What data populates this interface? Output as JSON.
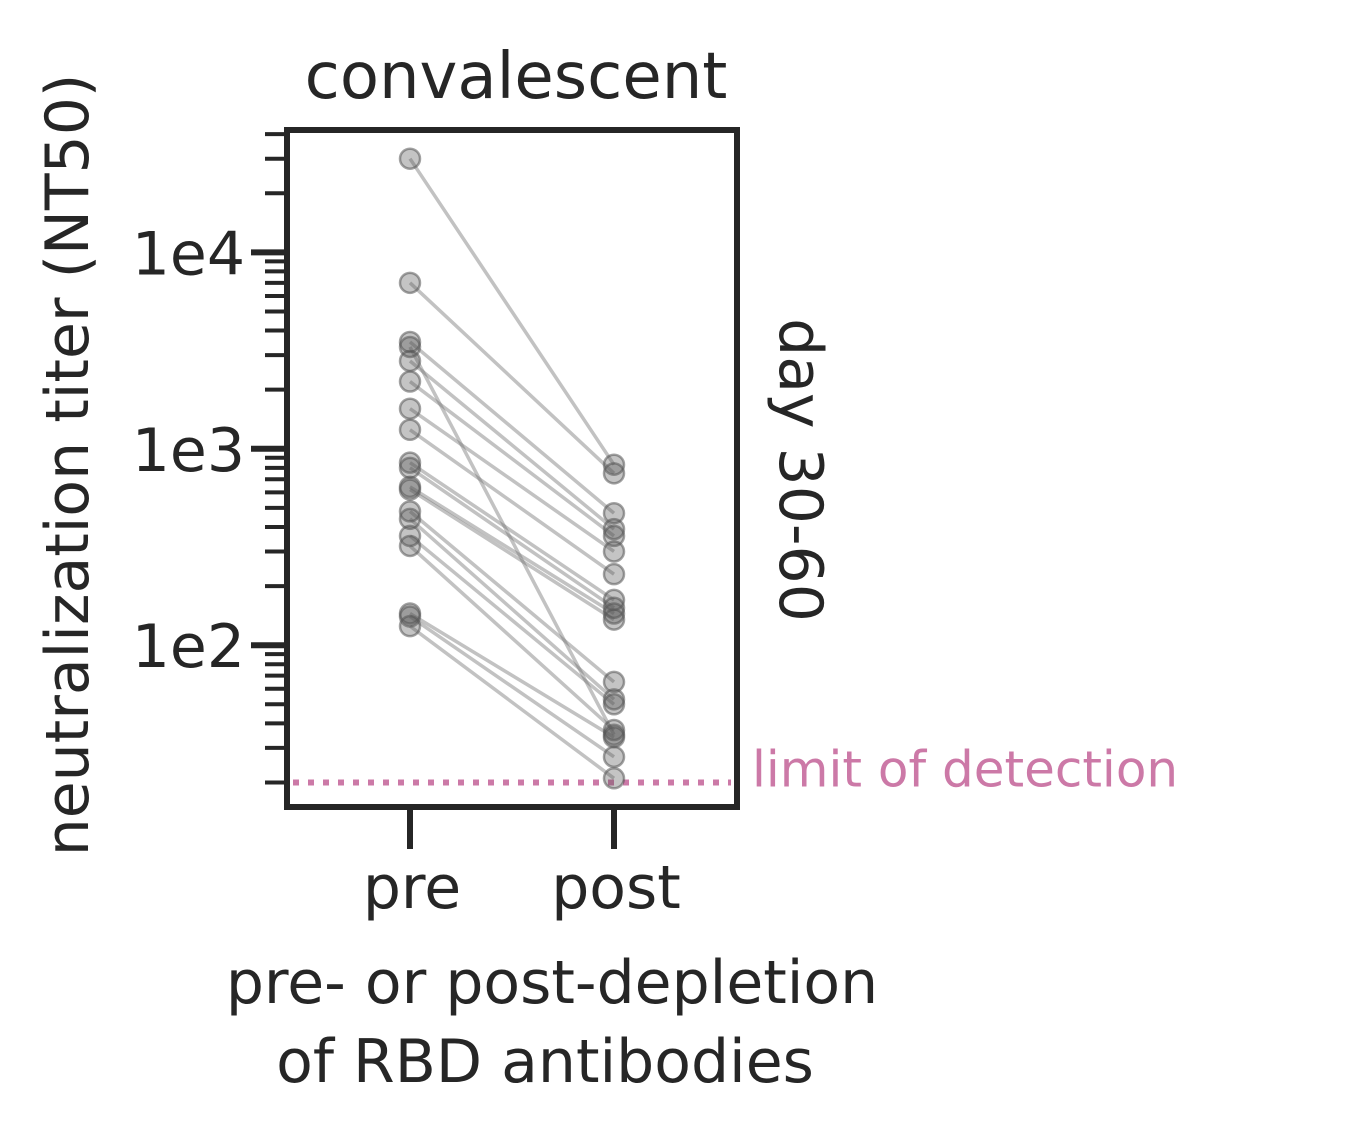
{
  "chart_data": {
    "type": "scatter",
    "title": "convalescent",
    "facet_label": "day 30-60",
    "ylabel": "neutralization titer (NT50)",
    "xlabel_lines": [
      "pre- or post-depletion",
      "of RBD antibodies"
    ],
    "x_categories": [
      "pre",
      "post"
    ],
    "y_scale": "log",
    "ylim": [
      15,
      42000
    ],
    "y_ticks": [
      100,
      1000,
      10000
    ],
    "y_tick_labels": [
      "1e2",
      "1e3",
      "1e4"
    ],
    "limit_of_detection": {
      "value": 20,
      "label": "limit of detection",
      "color": "#cc79a7"
    },
    "point_color": "#555555",
    "line_color": "#777777",
    "grid": false,
    "pairs": [
      {
        "pre": 30000,
        "post": 830
      },
      {
        "pre": 7000,
        "post": 750
      },
      {
        "pre": 3500,
        "post": 470
      },
      {
        "pre": 2800,
        "post": 390
      },
      {
        "pre": 2200,
        "post": 360
      },
      {
        "pre": 1600,
        "post": 300
      },
      {
        "pre": 1250,
        "post": 230
      },
      {
        "pre": 850,
        "post": 170
      },
      {
        "pre": 800,
        "post": 155
      },
      {
        "pre": 640,
        "post": 145
      },
      {
        "pre": 620,
        "post": 135
      },
      {
        "pre": 480,
        "post": 65
      },
      {
        "pre": 440,
        "post": 53
      },
      {
        "pre": 360,
        "post": 50
      },
      {
        "pre": 320,
        "post": 37
      },
      {
        "pre": 3300,
        "post": 35
      },
      {
        "pre": 145,
        "post": 34
      },
      {
        "pre": 140,
        "post": 27
      },
      {
        "pre": 125,
        "post": 21
      }
    ]
  }
}
